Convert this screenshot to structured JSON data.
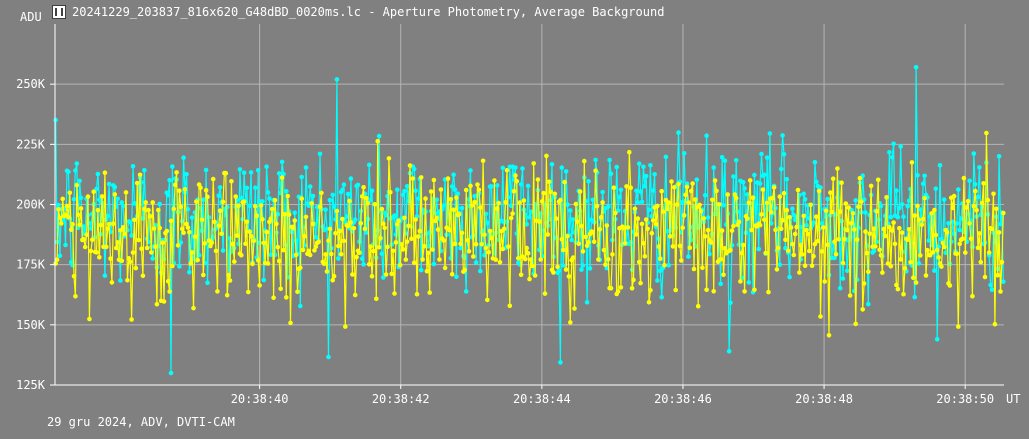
{
  "title": "20241229_203837_816x620_G48dBD_0020ms.lc - Aperture Photometry, Average Background",
  "footer": "29 gru 2024, ADV, DVTI-CAM",
  "icon": "lc-file-icon",
  "colors": {
    "background": "#808080",
    "grid": "#b4b4b4",
    "axis": "#ffffff",
    "series1": "#00ffff",
    "series2": "#ffff00"
  },
  "chart_data": {
    "type": "line",
    "title": "",
    "xlabel": "UT",
    "ylabel": "ADU",
    "ylim": [
      125000,
      275000
    ],
    "xlim": [
      "20:38:37.10",
      "20:38:50.55"
    ],
    "y_ticks": [
      "125K",
      "150K",
      "175K",
      "200K",
      "225K",
      "250K"
    ],
    "x_ticks": [
      "20:38:40",
      "20:38:42",
      "20:38:44",
      "20:38:46",
      "20:38:48",
      "20:38:50"
    ],
    "grid": true,
    "legend": "none",
    "sample_interval_s": 0.02,
    "series": [
      {
        "color": "#00ffff",
        "mean": 195000,
        "spread": 17000,
        "min": 130000,
        "max": 257000,
        "count": 675,
        "note_points": [
          {
            "x": "20:38:38.75",
            "y": 130000
          },
          {
            "x": "20:38:41.10",
            "y": 252000
          },
          {
            "x": "20:38:46.65",
            "y": 139000
          },
          {
            "x": "20:38:49.30",
            "y": 257000
          },
          {
            "x": "20:38:49.60",
            "y": 144000
          }
        ]
      },
      {
        "color": "#ffff00",
        "mean": 188000,
        "spread": 16000,
        "min": 145000,
        "max": 235000,
        "count": 675
      }
    ]
  }
}
